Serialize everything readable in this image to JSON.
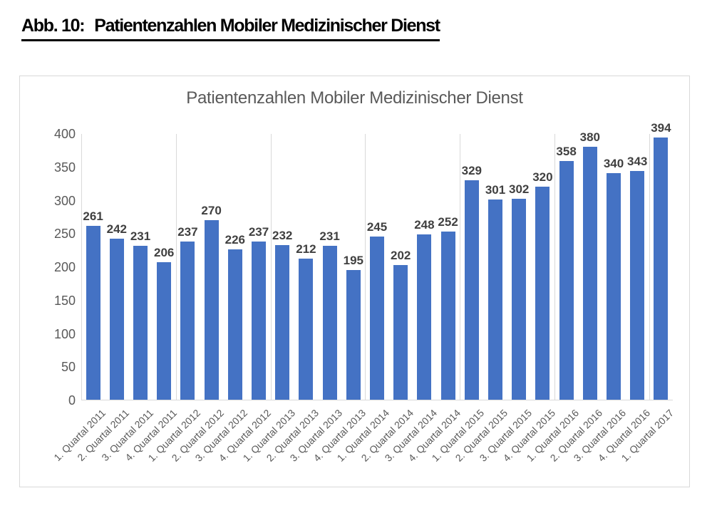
{
  "caption": {
    "prefix": "Abb. 10:",
    "title": "Patientenzahlen Mobiler Medizinischer Dienst"
  },
  "chart_data": {
    "type": "bar",
    "title": "Patientenzahlen Mobiler Medizinischer Dienst",
    "categories": [
      "1. Quartal 2011",
      "2. Quartal 2011",
      "3. Quartal 2011",
      "4. Quartal 2011",
      "1. Quartal 2012",
      "2. Quartal 2012",
      "3. Quartal 2012",
      "4. Quartal 2012",
      "1. Quartal 2013",
      "2. Quartal 2013",
      "3. Quartal 2013",
      "4. Quartal 2013",
      "1. Quartal 2014",
      "2. Quartal 2014",
      "3. Quartal 2014",
      "4. Quartal 2014",
      "1. Quartal 2015",
      "2. Quartal 2015",
      "3. Quartal 2015",
      "4. Quartal 2015",
      "1. Quartal 2016",
      "2. Quartal 2016",
      "3. Quartal 2016",
      "4. Quartal 2016",
      "1. Quartal 2017"
    ],
    "values": [
      261,
      242,
      231,
      206,
      237,
      270,
      226,
      237,
      232,
      212,
      231,
      195,
      245,
      202,
      248,
      252,
      329,
      301,
      302,
      320,
      358,
      380,
      340,
      343,
      394
    ],
    "xlabel": "",
    "ylabel": "",
    "ylim": [
      0,
      400
    ],
    "yticks": [
      0,
      50,
      100,
      150,
      200,
      250,
      300,
      350,
      400
    ],
    "data_labels": true,
    "legend": "none",
    "grid": "vertical-group-separators",
    "group_size": 4,
    "colors": {
      "bar": "#4472C4",
      "value_label": "#404040",
      "axis_text": "#595959",
      "grid_line": "#d9d9d9",
      "chart_border": "#d9d9d9",
      "title": "#595959"
    }
  }
}
